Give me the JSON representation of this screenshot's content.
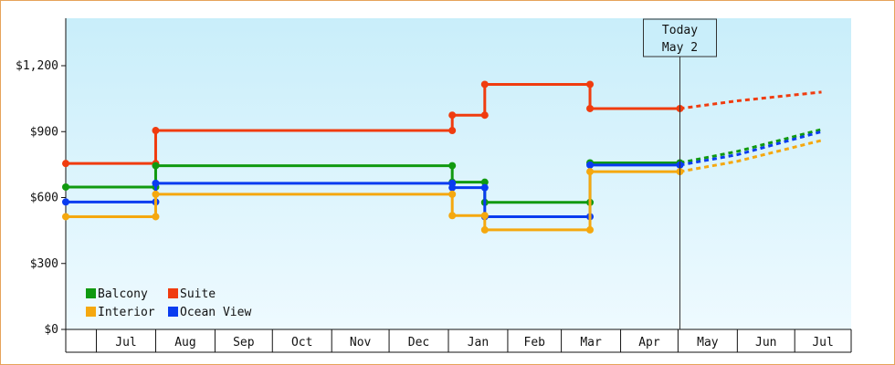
{
  "chart_data": {
    "type": "line",
    "title": "",
    "xlabel": "",
    "ylabel": "",
    "ylim": [
      0,
      1200
    ],
    "yticks": [
      {
        "value": 0,
        "label": "$0"
      },
      {
        "value": 300,
        "label": "$300"
      },
      {
        "value": 600,
        "label": "$600"
      },
      {
        "value": 900,
        "label": "$900"
      },
      {
        "value": 1200,
        "label": "$1,200"
      }
    ],
    "months": [
      "Jul",
      "Aug",
      "Sep",
      "Oct",
      "Nov",
      "Dec",
      "Jan",
      "Feb",
      "Mar",
      "Apr",
      "May",
      "Jun",
      "Jul"
    ],
    "today": {
      "line1": "Today",
      "line2": "May 2"
    },
    "legend_position": "bottom-left",
    "legend_order": [
      "Balcony",
      "Suite",
      "Interior",
      "Ocean View"
    ],
    "series": [
      {
        "name": "Suite",
        "color": "#f03c0f",
        "steps": [
          [
            "Jun 15",
            755
          ],
          [
            "Aug 1",
            905
          ],
          [
            "Jan 3",
            975
          ],
          [
            "Jan 20",
            1115
          ],
          [
            "Mar 16",
            1005
          ],
          [
            "May 2",
            1005
          ]
        ],
        "forecast": [
          [
            "May 2",
            1005
          ],
          [
            "Jun 1",
            1040
          ],
          [
            "Jul 15",
            1080
          ]
        ]
      },
      {
        "name": "Balcony",
        "color": "#109a10",
        "steps": [
          [
            "Jun 15",
            648
          ],
          [
            "Aug 1",
            745
          ],
          [
            "Jan 3",
            670
          ],
          [
            "Jan 20",
            578
          ],
          [
            "Mar 16",
            758
          ],
          [
            "May 2",
            758
          ]
        ],
        "forecast": [
          [
            "May 2",
            758
          ],
          [
            "Jun 1",
            810
          ],
          [
            "Jul 15",
            910
          ]
        ]
      },
      {
        "name": "Ocean View",
        "color": "#0a3cf0",
        "steps": [
          [
            "Jun 15",
            580
          ],
          [
            "Aug 1",
            665
          ],
          [
            "Jan 3",
            645
          ],
          [
            "Jan 20",
            513
          ],
          [
            "Mar 16",
            748
          ],
          [
            "May 2",
            748
          ]
        ],
        "forecast": [
          [
            "May 2",
            748
          ],
          [
            "Jun 1",
            795
          ],
          [
            "Jul 15",
            900
          ]
        ]
      },
      {
        "name": "Interior",
        "color": "#f5a80f",
        "steps": [
          [
            "Jun 15",
            513
          ],
          [
            "Aug 1",
            615
          ],
          [
            "Jan 3",
            518
          ],
          [
            "Jan 20",
            453
          ],
          [
            "Mar 16",
            718
          ],
          [
            "May 2",
            718
          ]
        ],
        "forecast": [
          [
            "May 2",
            718
          ],
          [
            "Jun 1",
            765
          ],
          [
            "Jul 15",
            860
          ]
        ]
      }
    ]
  }
}
